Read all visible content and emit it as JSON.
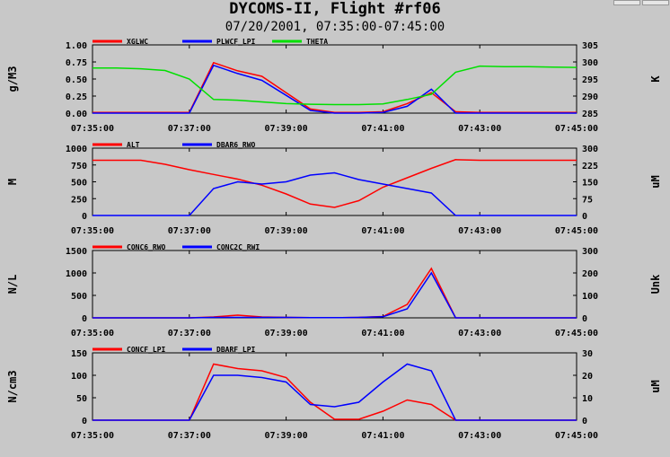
{
  "title": "DYCOMS-II, Flight #rf06",
  "subtitle": "07/20/2001, 07:35:00-07:45:00",
  "x_ticks": [
    "07:35:00",
    "07:37:00",
    "07:39:00",
    "07:41:00",
    "07:43:00",
    "07:45:00"
  ],
  "chart_data": [
    {
      "type": "line",
      "ylabel_left": "g/M3",
      "ylabel_right": "K",
      "ylim_left": [
        0,
        1.0
      ],
      "ylim_right": [
        285,
        305
      ],
      "yticks_left": [
        "0.00",
        "0.25",
        "0.50",
        "0.75",
        "1.00"
      ],
      "yticks_right": [
        "285",
        "290",
        "295",
        "300",
        "305"
      ],
      "x": [
        0,
        0.5,
        1,
        1.5,
        2,
        2.5,
        3,
        3.5,
        4,
        4.5,
        5,
        5.5,
        6,
        6.5,
        7,
        7.5,
        8,
        8.5,
        9,
        9.5,
        10
      ],
      "series": [
        {
          "name": "XGLWC",
          "color": "#ff0000",
          "axis": "left",
          "values": [
            0.01,
            0.01,
            0.01,
            0.01,
            0.01,
            0.74,
            0.62,
            0.54,
            0.3,
            0.06,
            0.01,
            0.01,
            0.02,
            0.14,
            0.3,
            0.02,
            0.01,
            0.01,
            0.01,
            0.01,
            0.01
          ]
        },
        {
          "name": "PLWCF_LPI",
          "color": "#0000ff",
          "axis": "left",
          "values": [
            0.0,
            0.0,
            0.0,
            0.0,
            0.0,
            0.7,
            0.58,
            0.48,
            0.26,
            0.04,
            0.0,
            0.0,
            0.01,
            0.1,
            0.35,
            0.0,
            0.0,
            0.0,
            0.0,
            0.0,
            0.0
          ]
        },
        {
          "name": "THETA",
          "color": "#00e000",
          "axis": "right",
          "values": [
            298.2,
            298.2,
            298.0,
            297.5,
            295.0,
            289.0,
            288.8,
            288.3,
            287.8,
            287.6,
            287.5,
            287.5,
            287.7,
            289.0,
            290.5,
            297.0,
            298.8,
            298.6,
            298.6,
            298.5,
            298.4
          ]
        }
      ]
    },
    {
      "type": "line",
      "ylabel_left": "M",
      "ylabel_right": "uM",
      "ylim_left": [
        0,
        1000
      ],
      "ylim_right": [
        0,
        300
      ],
      "yticks_left": [
        "0",
        "250",
        "500",
        "750",
        "1000"
      ],
      "yticks_right": [
        "0",
        "75",
        "150",
        "225",
        "300"
      ],
      "x": [
        0,
        0.5,
        1,
        1.5,
        2,
        2.5,
        3,
        3.5,
        4,
        4.5,
        5,
        5.5,
        6,
        6.5,
        7,
        7.5,
        8,
        8.5,
        9,
        9.5,
        10
      ],
      "series": [
        {
          "name": "ALT",
          "color": "#ff0000",
          "axis": "left",
          "values": [
            820,
            820,
            820,
            760,
            680,
            610,
            540,
            450,
            320,
            170,
            120,
            220,
            420,
            560,
            700,
            830,
            820,
            820,
            820,
            820,
            820
          ]
        },
        {
          "name": "DBAR6_RWO",
          "color": "#0000ff",
          "axis": "right",
          "values": [
            0,
            0,
            0,
            0,
            0,
            120,
            150,
            140,
            150,
            180,
            190,
            160,
            140,
            120,
            100,
            0,
            0,
            0,
            0,
            0,
            0
          ]
        }
      ]
    },
    {
      "type": "line",
      "ylabel_left": "N/L",
      "ylabel_right": "Unk",
      "ylim_left": [
        0,
        1500
      ],
      "ylim_right": [
        0,
        300
      ],
      "yticks_left": [
        "0",
        "500",
        "1000",
        "1500"
      ],
      "yticks_right": [
        "0",
        "100",
        "200",
        "300"
      ],
      "x": [
        0,
        0.5,
        1,
        1.5,
        2,
        2.5,
        3,
        3.5,
        4,
        4.5,
        5,
        5.5,
        6,
        6.5,
        7,
        7.5,
        8,
        8.5,
        9,
        9.5,
        10
      ],
      "series": [
        {
          "name": "CONC6_RWO",
          "color": "#ff0000",
          "axis": "left",
          "values": [
            0,
            0,
            0,
            0,
            0,
            20,
            60,
            20,
            10,
            5,
            5,
            10,
            30,
            300,
            1100,
            0,
            0,
            0,
            0,
            0,
            0
          ]
        },
        {
          "name": "CONC2C_RWI",
          "color": "#0000ff",
          "axis": "right",
          "values": [
            0,
            0,
            0,
            0,
            0,
            2,
            2,
            2,
            2,
            1,
            1,
            2,
            5,
            40,
            200,
            0,
            0,
            0,
            0,
            0,
            0
          ]
        }
      ]
    },
    {
      "type": "line",
      "ylabel_left": "N/cm3",
      "ylabel_right": "uM",
      "ylim_left": [
        0,
        150
      ],
      "ylim_right": [
        0,
        30
      ],
      "yticks_left": [
        "0",
        "50",
        "100",
        "150"
      ],
      "yticks_right": [
        "0",
        "10",
        "20",
        "30"
      ],
      "x": [
        0,
        0.5,
        1,
        1.5,
        2,
        2.5,
        3,
        3.5,
        4,
        4.5,
        5,
        5.5,
        6,
        6.5,
        7,
        7.5,
        8,
        8.5,
        9,
        9.5,
        10
      ],
      "series": [
        {
          "name": "CONCF_LPI",
          "color": "#ff0000",
          "axis": "left",
          "values": [
            0,
            0,
            0,
            0,
            0,
            125,
            115,
            110,
            95,
            40,
            2,
            2,
            20,
            45,
            35,
            0,
            0,
            0,
            0,
            0,
            0
          ]
        },
        {
          "name": "DBARF_LPI",
          "color": "#0000ff",
          "axis": "right",
          "values": [
            0,
            0,
            0,
            0,
            0,
            20,
            20,
            19,
            17,
            7,
            6,
            8,
            17,
            25,
            22,
            0,
            0,
            0,
            0,
            0,
            0
          ]
        }
      ]
    }
  ]
}
